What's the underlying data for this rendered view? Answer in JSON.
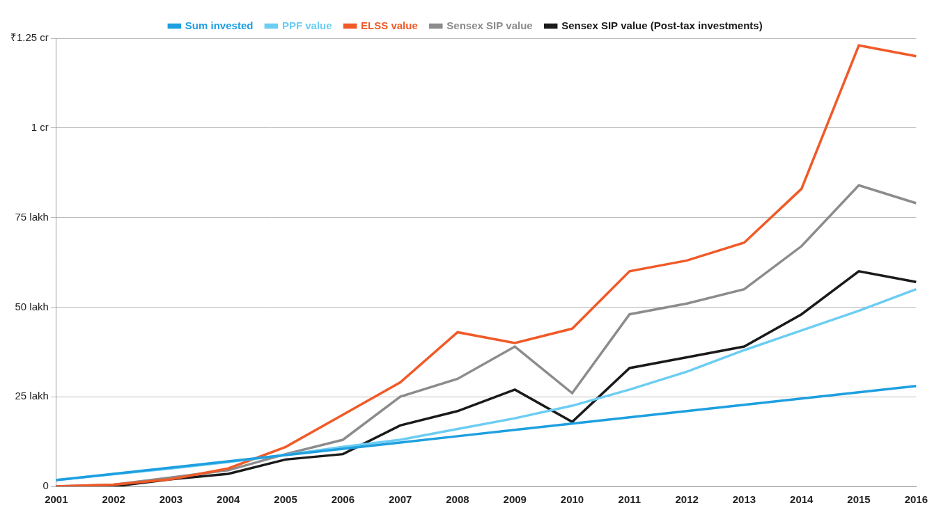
{
  "chart_data": {
    "type": "line",
    "categories": [
      "2001",
      "2002",
      "2003",
      "2004",
      "2005",
      "2006",
      "2007",
      "2008",
      "2009",
      "2010",
      "2011",
      "2012",
      "2013",
      "2014",
      "2015",
      "2016"
    ],
    "series": [
      {
        "name": "Sum invested",
        "color": "#1e9fe0",
        "line_style": "solid",
        "values": [
          1.75,
          3.5,
          5.25,
          7,
          8.75,
          10.5,
          12.25,
          14,
          15.75,
          17.5,
          19.25,
          21,
          22.75,
          24.5,
          26.25,
          28
        ]
      },
      {
        "name": "PPF value",
        "color": "#6ccdf2",
        "line_style": "solid",
        "values": [
          1.8,
          3.4,
          5.0,
          6.8,
          8.8,
          11,
          13,
          16,
          19,
          22.5,
          27,
          32,
          38,
          43.5,
          49,
          55
        ]
      },
      {
        "name": "ELSS value",
        "color": "#f05a28",
        "line_style": "solid",
        "values": [
          0,
          0.5,
          2,
          5,
          11,
          20,
          29,
          43,
          40,
          44,
          60,
          63,
          68,
          83,
          123,
          120
        ]
      },
      {
        "name": "Sensex SIP value",
        "color": "#8c8c8c",
        "line_style": "solid",
        "values": [
          0,
          0.5,
          2.5,
          4.5,
          9,
          13,
          25,
          30,
          39,
          26,
          48,
          51,
          55,
          67,
          84,
          79
        ]
      },
      {
        "name": "Sensex SIP value (Post-tax investments)",
        "color": "#1a1a1a",
        "line_style": "solid",
        "values": [
          0,
          0,
          2,
          3.5,
          7.5,
          9,
          17,
          21,
          27,
          18,
          33,
          36,
          39,
          48,
          60,
          57
        ]
      }
    ],
    "ylim": [
      0,
      125
    ],
    "yticks": [
      0,
      {
        "value": 25,
        "label": "25 lakh"
      },
      {
        "value": 50,
        "label": "50 lakh"
      },
      {
        "value": 75,
        "label": "75 lakh"
      },
      {
        "value": 100,
        "label": "1 cr"
      },
      {
        "value": 125,
        "label": "₹1.25 cr"
      }
    ],
    "grid": true,
    "legend": "top"
  }
}
